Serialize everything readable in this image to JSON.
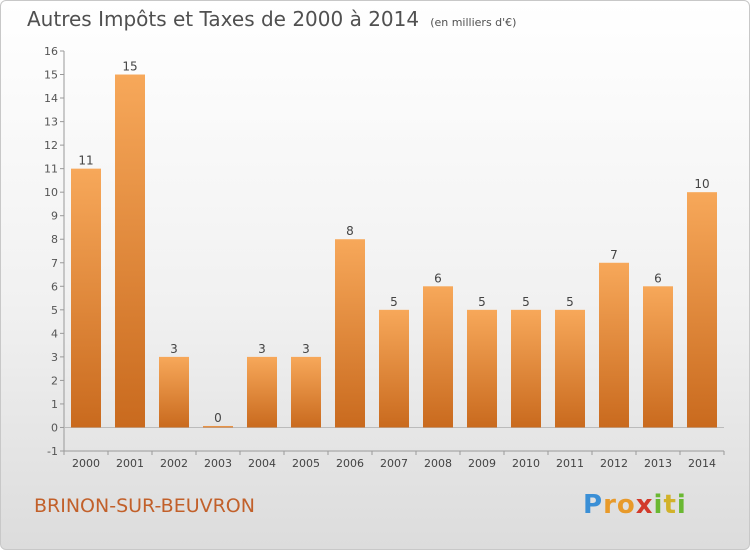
{
  "chart_data": {
    "type": "bar",
    "title": "Autres Impôts et Taxes de 2000 à 2014",
    "subtitle": "(en milliers d'€)",
    "categories": [
      "2000",
      "2001",
      "2002",
      "2003",
      "2004",
      "2005",
      "2006",
      "2007",
      "2008",
      "2009",
      "2010",
      "2011",
      "2012",
      "2013",
      "2014"
    ],
    "values": [
      11,
      15,
      3,
      0,
      3,
      3,
      8,
      5,
      6,
      5,
      5,
      5,
      7,
      6,
      10
    ],
    "ylim": [
      -1,
      16
    ],
    "yticks": [
      -1,
      0,
      1,
      2,
      3,
      4,
      5,
      6,
      7,
      8,
      9,
      10,
      11,
      12,
      13,
      14,
      15,
      16
    ],
    "xlabel": "",
    "ylabel": "",
    "grid": false,
    "legend": "none",
    "bar_color": "#f0963c"
  },
  "town": "BRINON-SUR-BEUVRON",
  "logo": {
    "letters": [
      "P",
      "r",
      "o",
      "x",
      "i",
      "t",
      "i"
    ],
    "colors": [
      "#3a8fd6",
      "#e89a2a",
      "#e89a2a",
      "#d23a2a",
      "#6ab832",
      "#d2b22a",
      "#6ab832"
    ]
  }
}
